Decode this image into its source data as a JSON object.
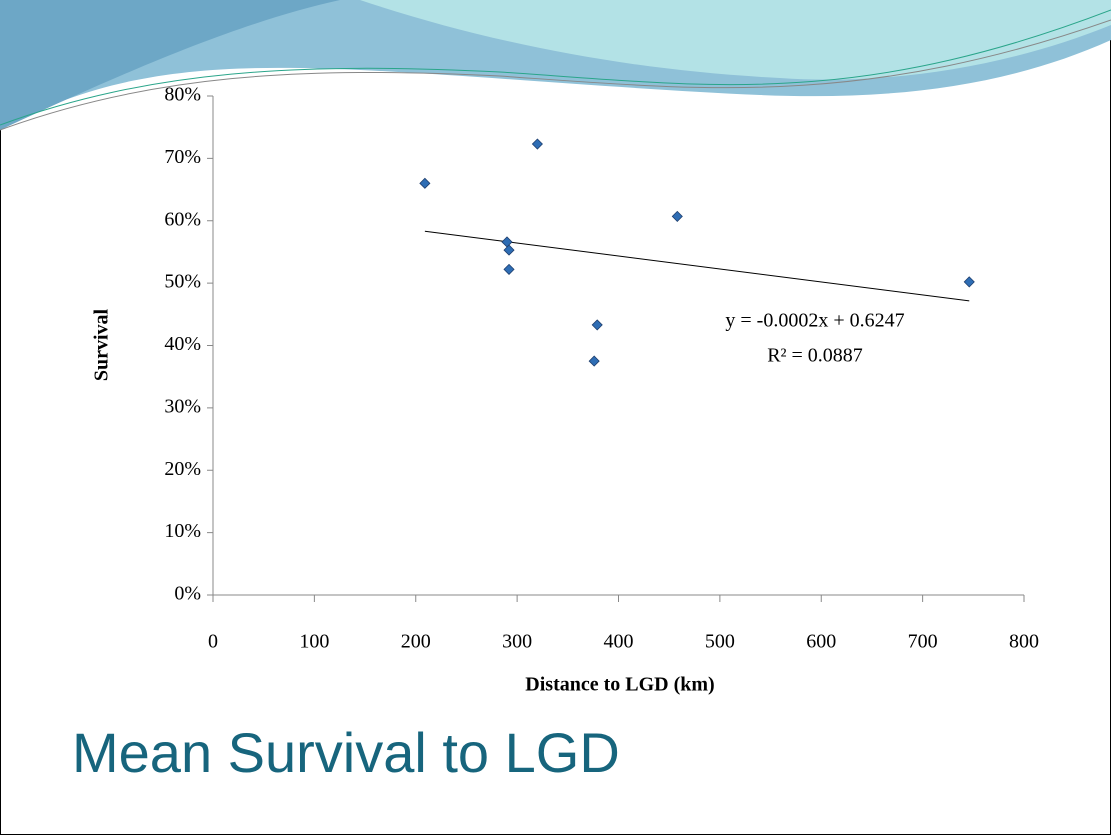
{
  "chart_data": {
    "type": "scatter",
    "title": "Mean Survival to LGD",
    "x_label": "Distance to LGD (km)",
    "y_label": "Survival",
    "x": [
      209,
      290,
      292,
      292,
      320,
      379,
      376,
      458,
      746
    ],
    "values": [
      66,
      56.6,
      55.3,
      52.2,
      72.3,
      43.3,
      37.5,
      60.7,
      50.2
    ],
    "color": "#2e6db4",
    "xlim": [
      0,
      800
    ],
    "xticks": [
      0,
      100,
      200,
      300,
      400,
      500,
      600,
      700,
      800
    ],
    "ylim": [
      0,
      80
    ],
    "yticks": [
      {
        "value": 0,
        "label": "0%"
      },
      {
        "value": 10,
        "label": "10%"
      },
      {
        "value": 20,
        "label": "20%"
      },
      {
        "value": 30,
        "label": "30%"
      },
      {
        "value": 40,
        "label": "40%"
      },
      {
        "value": 50,
        "label": "50%"
      },
      {
        "value": 60,
        "label": "60%"
      },
      {
        "value": 70,
        "label": "70%"
      },
      {
        "value": 80,
        "label": "80%"
      }
    ],
    "annotations": [
      "y = -0.0002x + 0.6247",
      "R² = 0.0887"
    ]
  }
}
